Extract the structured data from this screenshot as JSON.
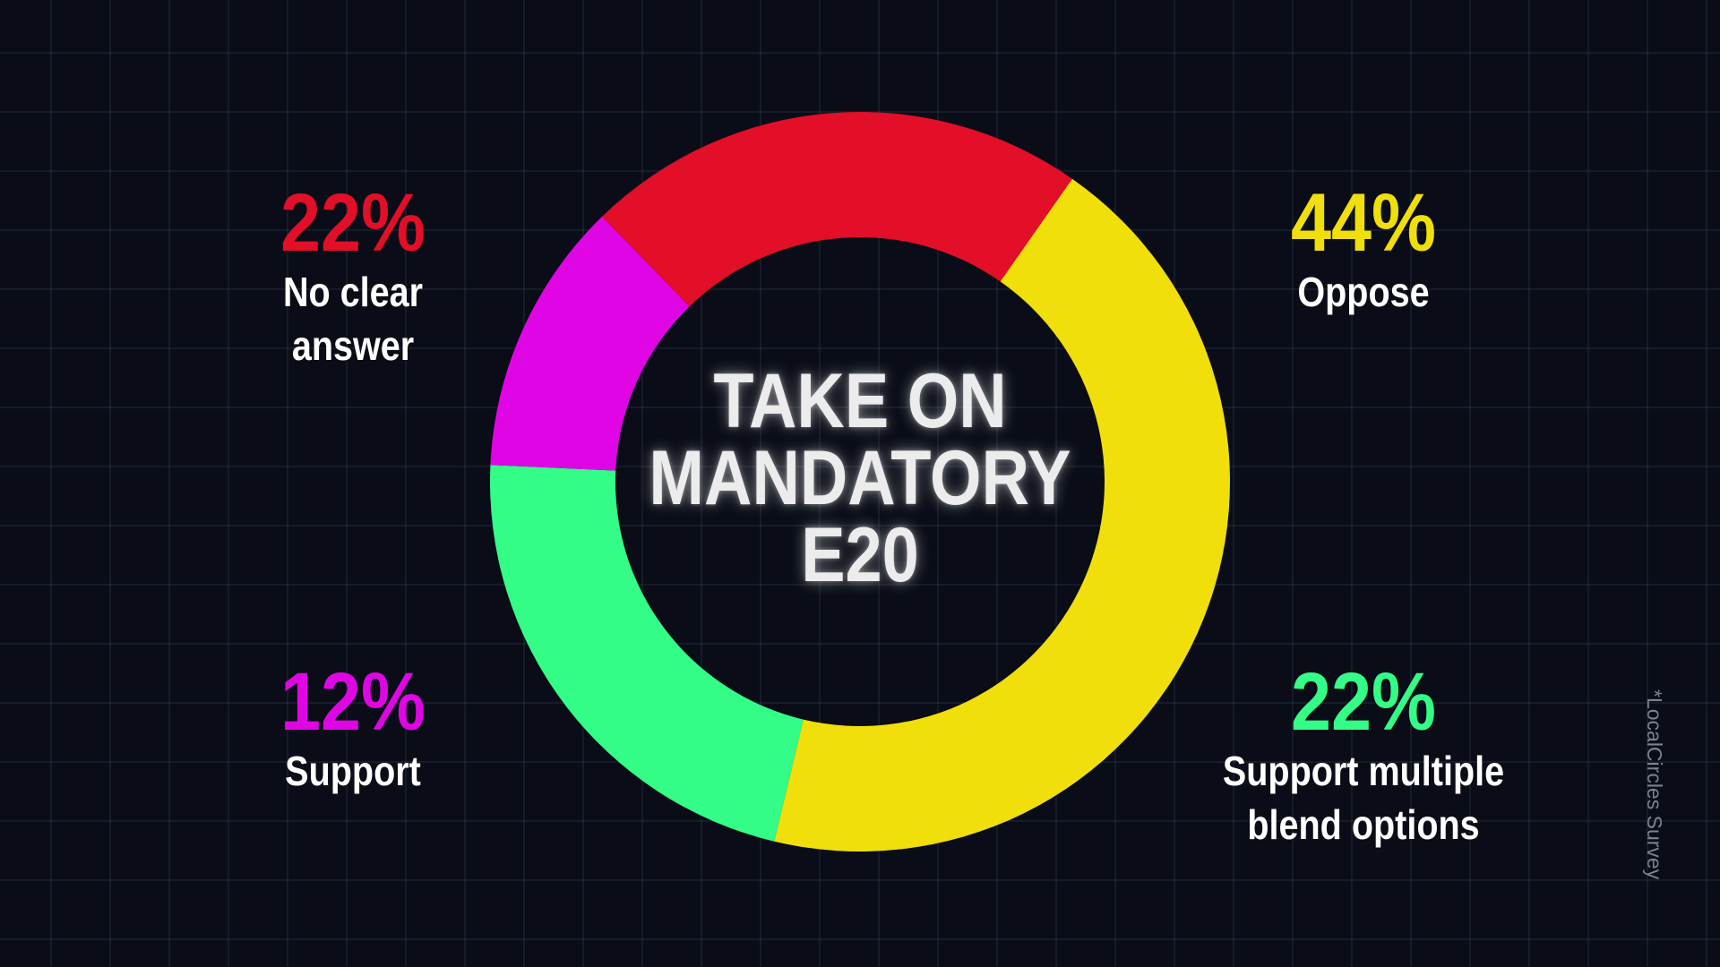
{
  "chart_data": {
    "type": "pie",
    "title": "TAKE ON MANDATORY E20",
    "title_lines": [
      "TAKE ON",
      "MANDATORY",
      "E20"
    ],
    "slices": [
      {
        "label": "Oppose",
        "value": 44,
        "value_text": "44%",
        "color": "#f0df0a"
      },
      {
        "label": "Support multiple blend options",
        "value": 22,
        "value_text": "22%",
        "color": "#33fd86"
      },
      {
        "label": "Support",
        "value": 12,
        "value_text": "12%",
        "color": "#e005e4"
      },
      {
        "label": "No clear answer",
        "value": 22,
        "value_text": "22%",
        "color": "#e30e27"
      }
    ],
    "legend": "labels-around"
  },
  "labels": {
    "no_clear": {
      "pct": "22%",
      "lines": [
        "No clear",
        "answer"
      ],
      "color": "#e30e27"
    },
    "oppose": {
      "pct": "44%",
      "lines": [
        "Oppose"
      ],
      "color": "#f0df0a"
    },
    "support": {
      "pct": "12%",
      "lines": [
        "Support"
      ],
      "color": "#e005e4"
    },
    "multiple": {
      "pct": "22%",
      "lines": [
        "Support multiple",
        "blend options"
      ],
      "color": "#33fd86"
    }
  },
  "source": "*LocalCircles Survey"
}
